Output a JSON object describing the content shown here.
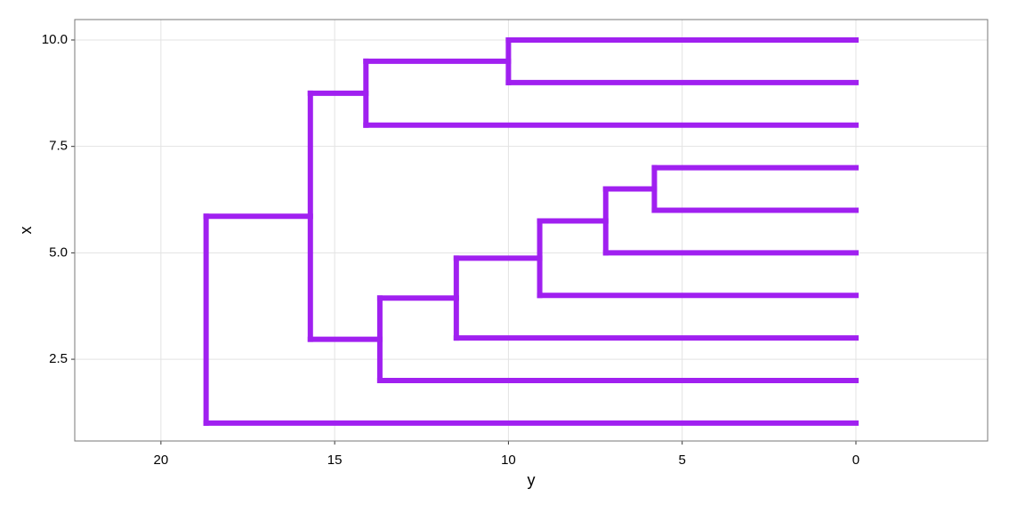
{
  "chart_data": {
    "type": "dendrogram",
    "x_label": "y",
    "y_label": "x",
    "color": "#a020f0",
    "xlim": [
      22.48,
      -3.79
    ],
    "xticks": [
      20,
      15,
      10,
      5,
      0
    ],
    "ylim": [
      0.58,
      10.48
    ],
    "yticks": [
      {
        "value": 10,
        "label": "10.0"
      },
      7.5,
      {
        "value": 5,
        "label": "5.0"
      },
      2.5
    ],
    "grid": true,
    "segments": [
      {
        "x": 10,
        "y": 10,
        "xend": 9,
        "yend": 10
      },
      {
        "x": 10,
        "y": 10,
        "xend": 10,
        "yend": 0
      },
      {
        "x": 9,
        "y": 10,
        "xend": 9,
        "yend": 0
      },
      {
        "x": 9.5,
        "y": 14.1,
        "xend": 8,
        "yend": 14.1
      },
      {
        "x": 9.5,
        "y": 14.1,
        "xend": 9.5,
        "yend": 10
      },
      {
        "x": 8,
        "y": 14.1,
        "xend": 8,
        "yend": 0
      },
      {
        "x": 7,
        "y": 5.8,
        "xend": 6,
        "yend": 5.8
      },
      {
        "x": 7,
        "y": 5.8,
        "xend": 7,
        "yend": 0
      },
      {
        "x": 6,
        "y": 5.8,
        "xend": 6,
        "yend": 0
      },
      {
        "x": 6.5,
        "y": 7.2,
        "xend": 5,
        "yend": 7.2
      },
      {
        "x": 6.5,
        "y": 7.2,
        "xend": 6.5,
        "yend": 5.8
      },
      {
        "x": 5,
        "y": 7.2,
        "xend": 5,
        "yend": 0
      },
      {
        "x": 5.75,
        "y": 9.1,
        "xend": 4,
        "yend": 9.1
      },
      {
        "x": 5.75,
        "y": 9.1,
        "xend": 5.75,
        "yend": 7.2
      },
      {
        "x": 4,
        "y": 9.1,
        "xend": 4,
        "yend": 0
      },
      {
        "x": 4.875,
        "y": 11.5,
        "xend": 3,
        "yend": 11.5
      },
      {
        "x": 4.875,
        "y": 11.5,
        "xend": 4.875,
        "yend": 9.1
      },
      {
        "x": 3,
        "y": 11.5,
        "xend": 3,
        "yend": 0
      },
      {
        "x": 3.9375,
        "y": 13.7,
        "xend": 2,
        "yend": 13.7
      },
      {
        "x": 3.9375,
        "y": 13.7,
        "xend": 3.9375,
        "yend": 11.5
      },
      {
        "x": 2,
        "y": 13.7,
        "xend": 2,
        "yend": 0
      },
      {
        "x": 8.75,
        "y": 15.7,
        "xend": 2.96875,
        "yend": 15.7
      },
      {
        "x": 8.75,
        "y": 15.7,
        "xend": 8.75,
        "yend": 14.1
      },
      {
        "x": 2.96875,
        "y": 15.7,
        "xend": 2.96875,
        "yend": 13.7
      },
      {
        "x": 5.859375,
        "y": 18.7,
        "xend": 1,
        "yend": 18.7
      },
      {
        "x": 5.859375,
        "y": 18.7,
        "xend": 5.859375,
        "yend": 15.7
      },
      {
        "x": 1,
        "y": 18.7,
        "xend": 1,
        "yend": 0
      }
    ]
  }
}
